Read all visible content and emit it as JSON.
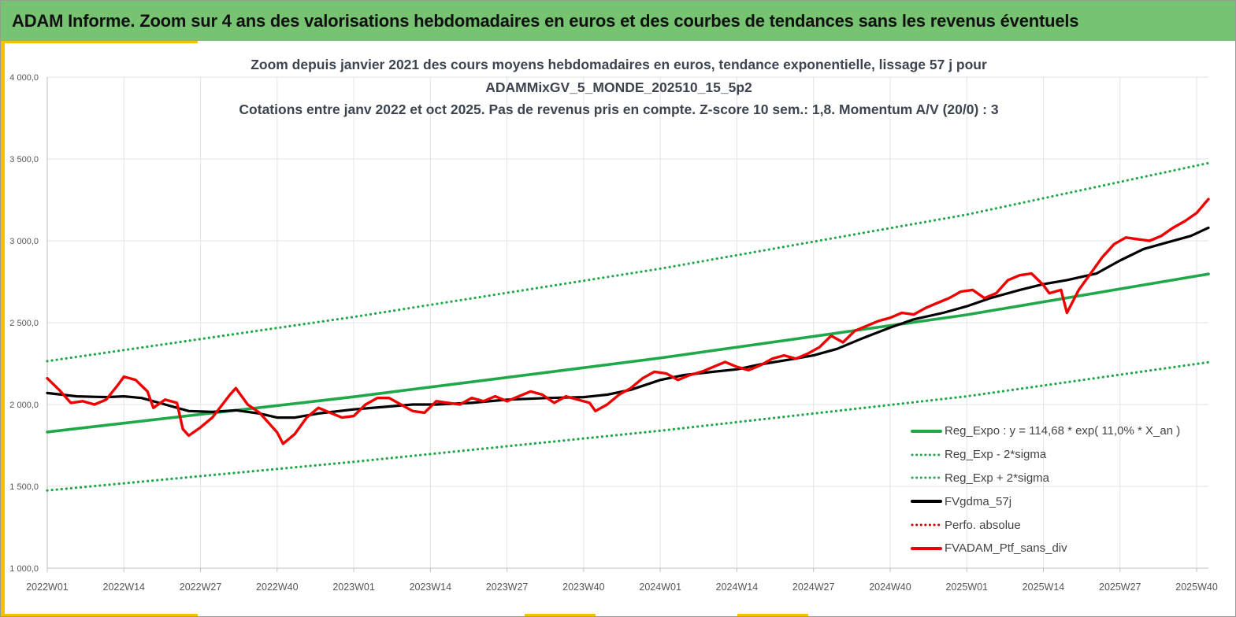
{
  "banner": "ADAM Informe. Zoom sur 4 ans des valorisations hebdomadaires en euros et des courbes de tendances sans les revenus éventuels",
  "chart_data": {
    "type": "line",
    "title": [
      "Zoom depuis janvier 2021 des cours moyens hebdomadaires  en euros, tendance exponentielle, lissage 57 j pour",
      "ADAMMixGV_5_MONDE_202510_15_5p2",
      "Cotations entre janv 2022 et oct 2025. Pas de revenus pris en compte. Z-score 10 sem.: 1,8. Momentum A/V (20/0) : 3"
    ],
    "xlabel": "",
    "ylabel": "",
    "ylim": [
      1000,
      4000
    ],
    "yticks": [
      1000,
      1500,
      2000,
      2500,
      3000,
      3500,
      4000
    ],
    "ytick_labels": [
      "1 000,0",
      "1 500,0",
      "2 000,0",
      "2 500,0",
      "3 000,0",
      "3 500,0",
      "4 000,0"
    ],
    "x_range_weeks": [
      0,
      197
    ],
    "xticks": [
      0,
      13,
      26,
      39,
      52,
      65,
      78,
      91,
      104,
      117,
      130,
      143,
      156,
      169,
      182,
      195
    ],
    "xtick_labels": [
      "2022W01",
      "2022W14",
      "2022W27",
      "2022W40",
      "2023W01",
      "2023W14",
      "2023W27",
      "2023W40",
      "2024W01",
      "2024W14",
      "2024W27",
      "2024W40",
      "2025W01",
      "2025W14",
      "2025W27",
      "2025W40"
    ],
    "grid": true,
    "legend_position": "bottom-right",
    "series": [
      {
        "name": "Reg_Expo : y = 114,68 * exp( 11,0% *  X_an )",
        "color": "#1fa84a",
        "style": "solid",
        "points": [
          [
            0,
            1832
          ],
          [
            52,
            2047
          ],
          [
            104,
            2284
          ],
          [
            156,
            2548
          ],
          [
            197,
            2797
          ]
        ]
      },
      {
        "name": "Reg_Exp - 2*sigma",
        "color": "#1fa84a",
        "style": "dotted",
        "points": [
          [
            0,
            1475
          ],
          [
            52,
            1650
          ],
          [
            104,
            1840
          ],
          [
            156,
            2050
          ],
          [
            197,
            2258
          ]
        ]
      },
      {
        "name": "Reg_Exp + 2*sigma",
        "color": "#1fa84a",
        "style": "dotted",
        "points": [
          [
            0,
            2265
          ],
          [
            52,
            2535
          ],
          [
            104,
            2830
          ],
          [
            156,
            3160
          ],
          [
            197,
            3475
          ]
        ]
      },
      {
        "name": "FVgdma_57j",
        "color": "#000000",
        "style": "solid",
        "points": [
          [
            0,
            2070
          ],
          [
            5,
            2050
          ],
          [
            10,
            2045
          ],
          [
            13,
            2050
          ],
          [
            16,
            2040
          ],
          [
            20,
            2000
          ],
          [
            24,
            1960
          ],
          [
            28,
            1955
          ],
          [
            32,
            1965
          ],
          [
            36,
            1945
          ],
          [
            39,
            1920
          ],
          [
            42,
            1920
          ],
          [
            46,
            1945
          ],
          [
            52,
            1970
          ],
          [
            57,
            1985
          ],
          [
            62,
            2000
          ],
          [
            66,
            2000
          ],
          [
            72,
            2010
          ],
          [
            78,
            2030
          ],
          [
            85,
            2040
          ],
          [
            91,
            2045
          ],
          [
            95,
            2060
          ],
          [
            99,
            2090
          ],
          [
            104,
            2150
          ],
          [
            108,
            2180
          ],
          [
            113,
            2200
          ],
          [
            117,
            2215
          ],
          [
            121,
            2245
          ],
          [
            126,
            2275
          ],
          [
            130,
            2300
          ],
          [
            134,
            2340
          ],
          [
            138,
            2400
          ],
          [
            143,
            2470
          ],
          [
            147,
            2520
          ],
          [
            152,
            2560
          ],
          [
            156,
            2600
          ],
          [
            160,
            2650
          ],
          [
            165,
            2700
          ],
          [
            169,
            2735
          ],
          [
            173,
            2760
          ],
          [
            178,
            2800
          ],
          [
            182,
            2880
          ],
          [
            186,
            2950
          ],
          [
            190,
            2990
          ],
          [
            194,
            3030
          ],
          [
            197,
            3080
          ]
        ]
      },
      {
        "name": "Perfo. absolue",
        "color": "#cc0000",
        "style": "dotted",
        "points": []
      },
      {
        "name": "FVADAM_Ptf_sans_div",
        "color": "#ee0000",
        "style": "solid",
        "points": [
          [
            0,
            2160
          ],
          [
            2,
            2090
          ],
          [
            4,
            2010
          ],
          [
            6,
            2020
          ],
          [
            8,
            2000
          ],
          [
            10,
            2030
          ],
          [
            12,
            2120
          ],
          [
            13,
            2170
          ],
          [
            15,
            2150
          ],
          [
            17,
            2080
          ],
          [
            18,
            1980
          ],
          [
            20,
            2030
          ],
          [
            22,
            2010
          ],
          [
            23,
            1850
          ],
          [
            24,
            1810
          ],
          [
            26,
            1860
          ],
          [
            28,
            1920
          ],
          [
            31,
            2060
          ],
          [
            32,
            2100
          ],
          [
            34,
            2000
          ],
          [
            36,
            1950
          ],
          [
            38,
            1870
          ],
          [
            39,
            1830
          ],
          [
            40,
            1760
          ],
          [
            42,
            1820
          ],
          [
            44,
            1920
          ],
          [
            46,
            1980
          ],
          [
            48,
            1950
          ],
          [
            50,
            1920
          ],
          [
            52,
            1930
          ],
          [
            54,
            2000
          ],
          [
            56,
            2040
          ],
          [
            58,
            2040
          ],
          [
            60,
            2000
          ],
          [
            62,
            1960
          ],
          [
            64,
            1950
          ],
          [
            66,
            2020
          ],
          [
            68,
            2010
          ],
          [
            70,
            2000
          ],
          [
            72,
            2040
          ],
          [
            74,
            2020
          ],
          [
            76,
            2050
          ],
          [
            78,
            2020
          ],
          [
            80,
            2050
          ],
          [
            82,
            2080
          ],
          [
            84,
            2060
          ],
          [
            86,
            2010
          ],
          [
            88,
            2050
          ],
          [
            90,
            2030
          ],
          [
            92,
            2010
          ],
          [
            93,
            1960
          ],
          [
            95,
            2000
          ],
          [
            97,
            2060
          ],
          [
            99,
            2100
          ],
          [
            101,
            2160
          ],
          [
            103,
            2200
          ],
          [
            105,
            2190
          ],
          [
            107,
            2150
          ],
          [
            109,
            2180
          ],
          [
            111,
            2200
          ],
          [
            113,
            2230
          ],
          [
            115,
            2260
          ],
          [
            117,
            2230
          ],
          [
            119,
            2210
          ],
          [
            121,
            2240
          ],
          [
            123,
            2280
          ],
          [
            125,
            2300
          ],
          [
            127,
            2280
          ],
          [
            129,
            2310
          ],
          [
            131,
            2350
          ],
          [
            133,
            2420
          ],
          [
            135,
            2380
          ],
          [
            137,
            2450
          ],
          [
            139,
            2480
          ],
          [
            141,
            2510
          ],
          [
            143,
            2530
          ],
          [
            145,
            2560
          ],
          [
            147,
            2550
          ],
          [
            149,
            2590
          ],
          [
            151,
            2620
          ],
          [
            153,
            2650
          ],
          [
            155,
            2690
          ],
          [
            157,
            2700
          ],
          [
            159,
            2650
          ],
          [
            161,
            2680
          ],
          [
            163,
            2760
          ],
          [
            165,
            2790
          ],
          [
            167,
            2800
          ],
          [
            169,
            2730
          ],
          [
            170,
            2680
          ],
          [
            172,
            2700
          ],
          [
            173,
            2560
          ],
          [
            175,
            2700
          ],
          [
            177,
            2800
          ],
          [
            179,
            2900
          ],
          [
            181,
            2980
          ],
          [
            183,
            3020
          ],
          [
            185,
            3010
          ],
          [
            187,
            3000
          ],
          [
            189,
            3030
          ],
          [
            191,
            3080
          ],
          [
            193,
            3120
          ],
          [
            195,
            3170
          ],
          [
            197,
            3255
          ]
        ]
      }
    ]
  }
}
